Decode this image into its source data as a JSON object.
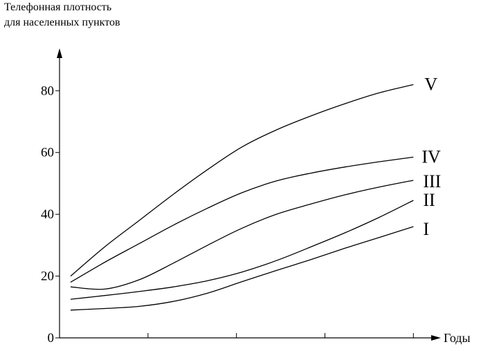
{
  "chart_data": {
    "type": "line",
    "title": "",
    "ylabel": [
      "Телефонная плотность",
      "для населенных пунктов"
    ],
    "xlabel": "Годы",
    "x": [
      0,
      0.1,
      0.2,
      0.3,
      0.4,
      0.5,
      0.6,
      0.7,
      0.8,
      0.9,
      1.0
    ],
    "x_ticks": [
      0.25,
      0.5,
      0.75,
      1.0
    ],
    "x_tick_labels": [
      "",
      "",
      "",
      ""
    ],
    "xlim": [
      0,
      1.06
    ],
    "ylim": [
      0,
      87
    ],
    "y_ticks": [
      0,
      20,
      40,
      60,
      80
    ],
    "y_tick_labels": [
      "0",
      "20",
      "40",
      "60",
      "80"
    ],
    "grid": false,
    "series": [
      {
        "name": "I",
        "values": [
          9,
          9.5,
          10.2,
          11.8,
          14.5,
          18.2,
          21.8,
          25.3,
          29,
          32.5,
          36
        ]
      },
      {
        "name": "II",
        "values": [
          12.5,
          13.7,
          15,
          16.5,
          18.5,
          21.3,
          25,
          29.4,
          34,
          39,
          44.5
        ]
      },
      {
        "name": "III",
        "values": [
          16.5,
          15.8,
          18.8,
          24.2,
          30,
          35.5,
          40,
          43.3,
          46.3,
          48.8,
          51
        ]
      },
      {
        "name": "IV",
        "values": [
          18,
          24.5,
          30.5,
          36.5,
          42,
          47,
          50.8,
          53.3,
          55.3,
          57,
          58.5
        ]
      },
      {
        "name": "V",
        "values": [
          20,
          29.5,
          38,
          46.5,
          54.5,
          61.8,
          67.3,
          71.8,
          75.8,
          79.3,
          82
        ]
      }
    ]
  }
}
